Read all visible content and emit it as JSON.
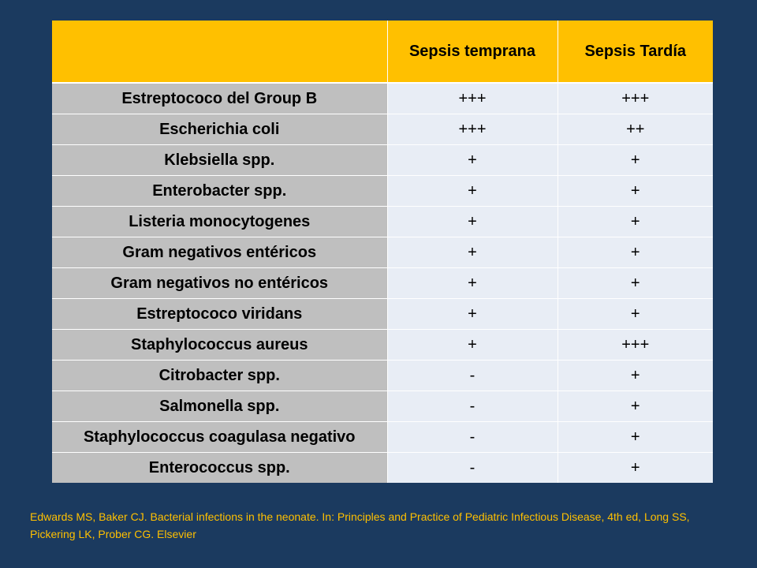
{
  "colors": {
    "background": "#1b3a5f",
    "header": "#ffc000",
    "organism_cell": "#bfbfbf",
    "value_cell": "#e8edf5",
    "citation_text": "#ffc000"
  },
  "table": {
    "headers": [
      "",
      "Sepsis temprana",
      "Sepsis Tardía"
    ],
    "rows": [
      {
        "organism": "Estreptococo del Group B",
        "early": "+++",
        "late": "+++"
      },
      {
        "organism": "Escherichia coli",
        "early": "+++",
        "late": "++"
      },
      {
        "organism": "Klebsiella spp.",
        "early": "+",
        "late": "+"
      },
      {
        "organism": "Enterobacter spp.",
        "early": "+",
        "late": "+"
      },
      {
        "organism": "Listeria monocytogenes",
        "early": "+",
        "late": "+"
      },
      {
        "organism": "Gram negativos entéricos",
        "early": "+",
        "late": "+"
      },
      {
        "organism": "Gram negativos no entéricos",
        "early": "+",
        "late": "+"
      },
      {
        "organism": "Estreptococo viridans",
        "early": "+",
        "late": "+"
      },
      {
        "organism": "Staphylococcus aureus",
        "early": "+",
        "late": "+++"
      },
      {
        "organism": "Citrobacter spp.",
        "early": "-",
        "late": "+"
      },
      {
        "organism": "Salmonella spp.",
        "early": "-",
        "late": "+"
      },
      {
        "organism": "Staphylococcus coagulasa negativo",
        "early": "-",
        "late": "+"
      },
      {
        "organism": "Enterococcus spp.",
        "early": "-",
        "late": "+"
      }
    ]
  },
  "citation": "Edwards MS, Baker CJ. Bacterial infections in the neonate. In: Principles and Practice of Pediatric Infectious Disease, 4th ed, Long SS, Pickering LK, Prober CG. Elsevier"
}
